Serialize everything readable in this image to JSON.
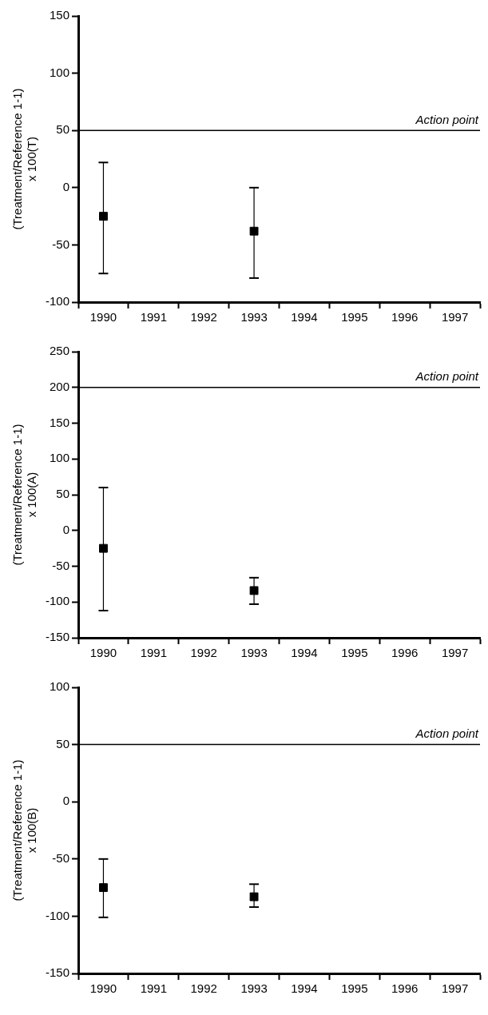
{
  "chart_data": [
    {
      "type": "scatter",
      "categories": [
        "1990",
        "1991",
        "1992",
        "1993",
        "1994",
        "1995",
        "1996",
        "1997"
      ],
      "ylabel": "(Treatment/Reference 1-1)\nx 100(T)",
      "ylim": [
        -100,
        150
      ],
      "yticks": [
        -100,
        -50,
        0,
        50,
        100,
        150
      ],
      "grid": false,
      "legend": false,
      "marker": "square",
      "series": [
        {
          "color": "#000000",
          "values": [
            -25,
            null,
            null,
            -38,
            null,
            null,
            null,
            null
          ],
          "errors": [
            [
              -75,
              22
            ],
            null,
            null,
            [
              -79,
              0
            ],
            null,
            null,
            null,
            null
          ]
        }
      ],
      "ref_lines": [
        {
          "axis": "y",
          "value": 50,
          "label": "Action point",
          "color": "#000000"
        }
      ]
    },
    {
      "type": "scatter",
      "categories": [
        "1990",
        "1991",
        "1992",
        "1993",
        "1994",
        "1995",
        "1996",
        "1997"
      ],
      "ylabel": "(Treatment/Reference 1-1)\nx 100(A)",
      "ylim": [
        -150,
        250
      ],
      "yticks": [
        -150,
        -100,
        -50,
        0,
        50,
        100,
        150,
        200,
        250
      ],
      "grid": false,
      "legend": false,
      "marker": "square",
      "series": [
        {
          "color": "#000000",
          "values": [
            -25,
            null,
            null,
            -84,
            null,
            null,
            null,
            null
          ],
          "errors": [
            [
              -112,
              60
            ],
            null,
            null,
            [
              -103,
              -66
            ],
            null,
            null,
            null,
            null
          ]
        }
      ],
      "ref_lines": [
        {
          "axis": "y",
          "value": 200,
          "label": "Action point",
          "color": "#000000"
        }
      ]
    },
    {
      "type": "scatter",
      "categories": [
        "1990",
        "1991",
        "1992",
        "1993",
        "1994",
        "1995",
        "1996",
        "1997"
      ],
      "ylabel": "(Treatment/Reference 1-1)\nx 100(B)",
      "ylim": [
        -150,
        100
      ],
      "yticks": [
        -150,
        -100,
        -50,
        0,
        50,
        100
      ],
      "grid": false,
      "legend": false,
      "marker": "square",
      "series": [
        {
          "color": "#000000",
          "values": [
            -75,
            null,
            null,
            -83,
            null,
            null,
            null,
            null
          ],
          "errors": [
            [
              -101,
              -50
            ],
            null,
            null,
            [
              -92,
              -72
            ],
            null,
            null,
            null,
            null
          ]
        }
      ],
      "ref_lines": [
        {
          "axis": "y",
          "value": 50,
          "label": "Action point",
          "color": "#000000"
        }
      ]
    }
  ]
}
